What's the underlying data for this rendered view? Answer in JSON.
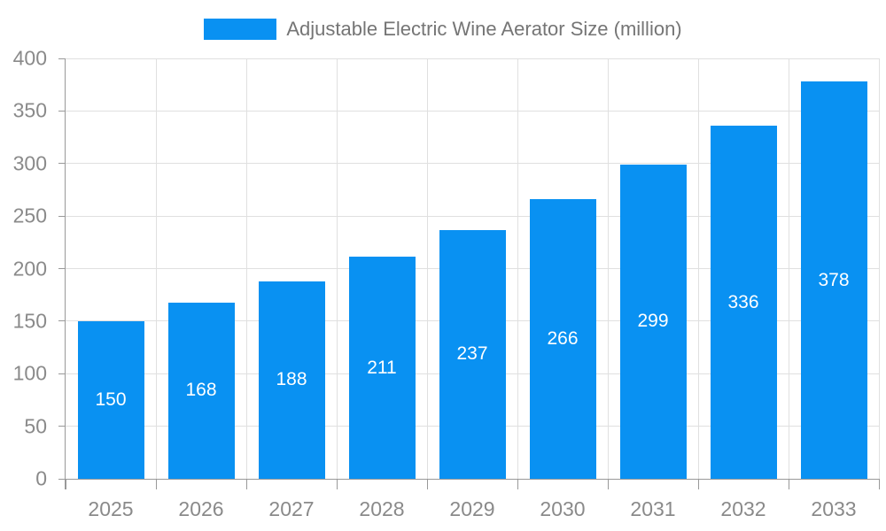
{
  "chart_data": {
    "type": "bar",
    "title": "Adjustable Electric Wine Aerator Size (million)",
    "categories": [
      "2025",
      "2026",
      "2027",
      "2028",
      "2029",
      "2030",
      "2031",
      "2032",
      "2033"
    ],
    "values": [
      150,
      168,
      188,
      211,
      237,
      266,
      299,
      336,
      378
    ],
    "xlabel": "",
    "ylabel": "",
    "ylim": [
      0,
      400
    ],
    "yticks": [
      0,
      50,
      100,
      150,
      200,
      250,
      300,
      350,
      400
    ],
    "grid": true,
    "legend_position": "top-center",
    "bar_labels_inside": true
  },
  "colors": {
    "bar": "#0991F2",
    "bar_label": "#FFFFFF",
    "axis_line": "#999999",
    "grid_line": "#E0E0E0",
    "tick_label": "#8A8A8A",
    "legend_text": "#757575",
    "background": "#FFFFFF"
  }
}
